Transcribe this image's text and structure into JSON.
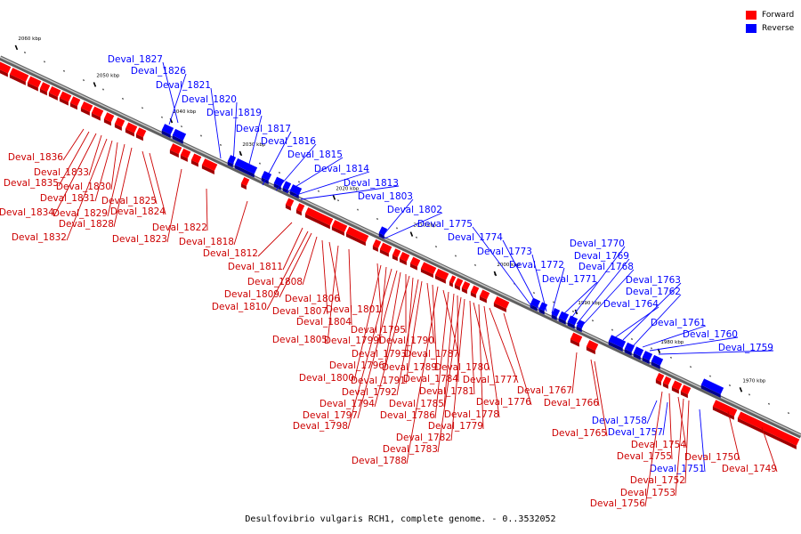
{
  "caption": "Desulfovibrio vulgaris RCH1, complete genome. - 0..3532052",
  "legend": {
    "forward": "Forward",
    "reverse": "Reverse"
  },
  "colors": {
    "forward": "#ff0000",
    "reverse": "#0000ff",
    "axis": "#808080"
  },
  "chart_data": {
    "type": "genome-map",
    "ticks": [
      "2060 kbp",
      "2050 kbp",
      "2040 kbp",
      "2030 kbp",
      "2020 kbp",
      "2010 kbp",
      "2000 kbp",
      "1990 kbp",
      "1980 kbp",
      "1970 kbp"
    ],
    "forward_genes": [
      "Deval_1836",
      "Deval_1835",
      "Deval_1834",
      "Deval_1833",
      "Deval_1832",
      "Deval_1831",
      "Deval_1830",
      "Deval_1829",
      "Deval_1828",
      "Deval_1825",
      "Deval_1824",
      "Deval_1823",
      "Deval_1822",
      "Deval_1818",
      "Deval_1812",
      "Deval_1811",
      "Deval_1810",
      "Deval_1809",
      "Deval_1808",
      "Deval_1807",
      "Deval_1806",
      "Deval_1805",
      "Deval_1804",
      "Deval_1801",
      "Deval_1800",
      "Deval_1799",
      "Deval_1798",
      "Deval_1797",
      "Deval_1796",
      "Deval_1795",
      "Deval_1794",
      "Deval_1793",
      "Deval_1792",
      "Deval_1791",
      "Deval_1790",
      "Deval_1789",
      "Deval_1788",
      "Deval_1787",
      "Deval_1786",
      "Deval_1785",
      "Deval_1784",
      "Deval_1783",
      "Deval_1782",
      "Deval_1781",
      "Deval_1780",
      "Deval_1779",
      "Deval_1778",
      "Deval_1777",
      "Deval_1776",
      "Deval_1767",
      "Deval_1766",
      "Deval_1765",
      "Deval_1756",
      "Deval_1755",
      "Deval_1754",
      "Deval_1753",
      "Deval_1752",
      "Deval_1750",
      "Deval_1749"
    ],
    "reverse_genes": [
      "Deval_1827",
      "Deval_1826",
      "Deval_1821",
      "Deval_1820",
      "Deval_1819",
      "Deval_1817",
      "Deval_1816",
      "Deval_1815",
      "Deval_1814",
      "Deval_1813",
      "Deval_1803",
      "Deval_1802",
      "Deval_1775",
      "Deval_1774",
      "Deval_1773",
      "Deval_1772",
      "Deval_1771",
      "Deval_1770",
      "Deval_1769",
      "Deval_1768",
      "Deval_1764",
      "Deval_1763",
      "Deval_1762",
      "Deval_1761",
      "Deval_1760",
      "Deval_1759",
      "Deval_1758",
      "Deval_1757",
      "Deval_1751"
    ]
  }
}
